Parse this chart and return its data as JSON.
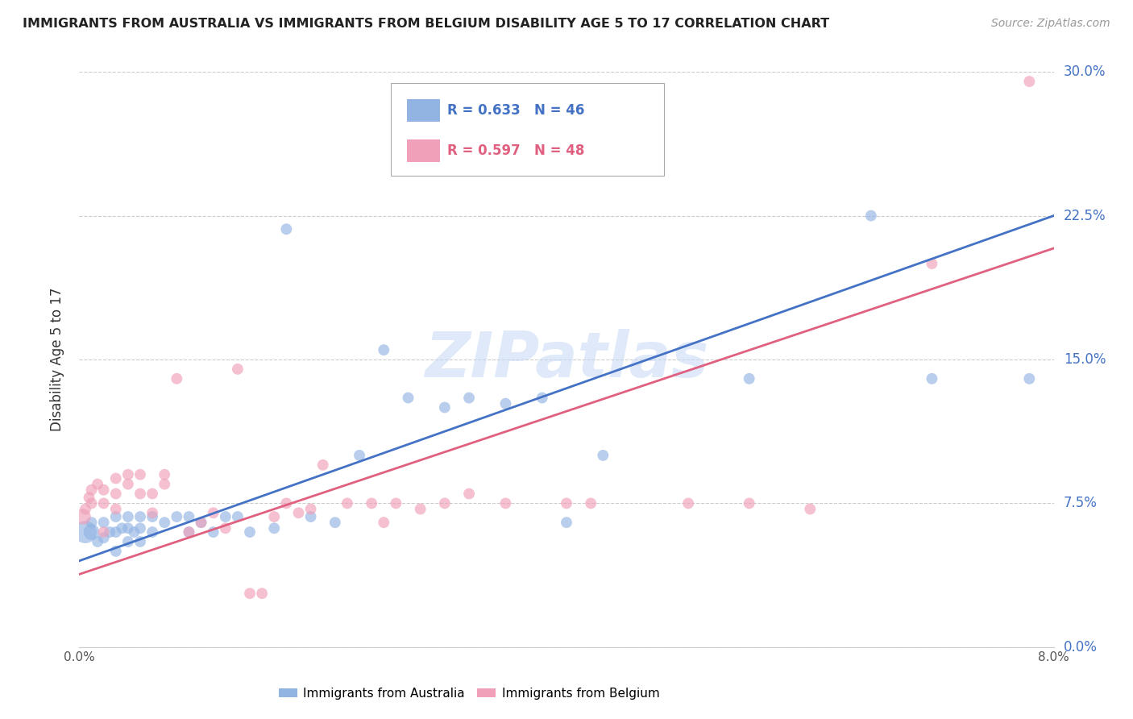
{
  "title": "IMMIGRANTS FROM AUSTRALIA VS IMMIGRANTS FROM BELGIUM DISABILITY AGE 5 TO 17 CORRELATION CHART",
  "source": "Source: ZipAtlas.com",
  "ylabel": "Disability Age 5 to 17",
  "xlim": [
    0.0,
    0.08
  ],
  "ylim": [
    0.0,
    0.3
  ],
  "xticks": [
    0.0,
    0.02,
    0.04,
    0.06,
    0.08
  ],
  "xtick_labels": [
    "0.0%",
    "",
    "",
    "",
    "8.0%"
  ],
  "ytick_labels": [
    "0.0%",
    "7.5%",
    "15.0%",
    "22.5%",
    "30.0%"
  ],
  "yticks": [
    0.0,
    0.075,
    0.15,
    0.225,
    0.3
  ],
  "blue_color": "#92b4e3",
  "pink_color": "#f0a0b8",
  "blue_line_color": "#4472c4",
  "pink_line_color": "#e06080",
  "legend_blue_R": "R = 0.633",
  "legend_blue_N": "N = 46",
  "legend_pink_R": "R = 0.597",
  "legend_pink_N": "N = 48",
  "watermark": "ZIPatlas",
  "blue_line": [
    [
      0.0,
      0.045
    ],
    [
      0.08,
      0.225
    ]
  ],
  "pink_line": [
    [
      0.0,
      0.038
    ],
    [
      0.08,
      0.208
    ]
  ],
  "australia_x": [
    0.0005,
    0.001,
    0.001,
    0.0015,
    0.002,
    0.002,
    0.0025,
    0.003,
    0.003,
    0.003,
    0.0035,
    0.004,
    0.004,
    0.004,
    0.0045,
    0.005,
    0.005,
    0.005,
    0.006,
    0.006,
    0.007,
    0.008,
    0.009,
    0.009,
    0.01,
    0.011,
    0.012,
    0.013,
    0.014,
    0.016,
    0.017,
    0.019,
    0.021,
    0.023,
    0.025,
    0.027,
    0.03,
    0.032,
    0.035,
    0.038,
    0.04,
    0.043,
    0.055,
    0.065,
    0.07,
    0.078
  ],
  "australia_y": [
    0.06,
    0.06,
    0.065,
    0.055,
    0.057,
    0.065,
    0.06,
    0.05,
    0.06,
    0.068,
    0.062,
    0.055,
    0.062,
    0.068,
    0.06,
    0.055,
    0.062,
    0.068,
    0.06,
    0.068,
    0.065,
    0.068,
    0.06,
    0.068,
    0.065,
    0.06,
    0.068,
    0.068,
    0.06,
    0.062,
    0.218,
    0.068,
    0.065,
    0.1,
    0.155,
    0.13,
    0.125,
    0.13,
    0.127,
    0.13,
    0.065,
    0.1,
    0.14,
    0.225,
    0.14,
    0.14
  ],
  "australia_sizes": [
    400,
    200,
    100,
    100,
    100,
    100,
    100,
    100,
    100,
    100,
    100,
    100,
    100,
    100,
    100,
    100,
    100,
    100,
    100,
    100,
    100,
    100,
    100,
    100,
    100,
    100,
    100,
    100,
    100,
    100,
    100,
    100,
    100,
    100,
    100,
    100,
    100,
    100,
    100,
    100,
    100,
    100,
    100,
    100,
    100,
    100
  ],
  "belgium_x": [
    0.0003,
    0.0005,
    0.0008,
    0.001,
    0.001,
    0.0015,
    0.002,
    0.002,
    0.002,
    0.003,
    0.003,
    0.003,
    0.004,
    0.004,
    0.005,
    0.005,
    0.006,
    0.006,
    0.007,
    0.007,
    0.008,
    0.009,
    0.01,
    0.011,
    0.012,
    0.013,
    0.014,
    0.015,
    0.016,
    0.017,
    0.018,
    0.019,
    0.02,
    0.022,
    0.024,
    0.025,
    0.026,
    0.028,
    0.03,
    0.032,
    0.035,
    0.04,
    0.042,
    0.05,
    0.055,
    0.06,
    0.07,
    0.078
  ],
  "belgium_y": [
    0.068,
    0.072,
    0.078,
    0.075,
    0.082,
    0.085,
    0.06,
    0.075,
    0.082,
    0.072,
    0.08,
    0.088,
    0.085,
    0.09,
    0.08,
    0.09,
    0.07,
    0.08,
    0.085,
    0.09,
    0.14,
    0.06,
    0.065,
    0.07,
    0.062,
    0.145,
    0.028,
    0.028,
    0.068,
    0.075,
    0.07,
    0.072,
    0.095,
    0.075,
    0.075,
    0.065,
    0.075,
    0.072,
    0.075,
    0.08,
    0.075,
    0.075,
    0.075,
    0.075,
    0.075,
    0.072,
    0.2,
    0.295
  ],
  "belgium_sizes": [
    200,
    100,
    100,
    100,
    100,
    100,
    100,
    100,
    100,
    100,
    100,
    100,
    100,
    100,
    100,
    100,
    100,
    100,
    100,
    100,
    100,
    100,
    100,
    100,
    100,
    100,
    100,
    100,
    100,
    100,
    100,
    100,
    100,
    100,
    100,
    100,
    100,
    100,
    100,
    100,
    100,
    100,
    100,
    100,
    100,
    100,
    100,
    100
  ]
}
